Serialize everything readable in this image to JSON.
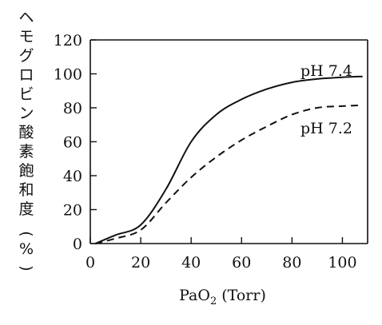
{
  "chart_data": {
    "type": "line",
    "xlabel": "PaO₂ (Torr)",
    "xlabel_main": "PaO",
    "xlabel_sub": "2",
    "xlabel_unit": "(Torr)",
    "ylabel": "ヘモグロビン酸素飽和度 (%)",
    "ylabel_chars": [
      "ヘ",
      "モ",
      "グ",
      "ロ",
      "ビ",
      "ン",
      "酸",
      "素",
      "飽",
      "和",
      "度",
      "(",
      "%",
      ")"
    ],
    "xlim": [
      0,
      110
    ],
    "ylim": [
      0,
      120
    ],
    "x_ticks": [
      0,
      20,
      40,
      60,
      80,
      100
    ],
    "y_ticks": [
      0,
      20,
      40,
      60,
      80,
      100,
      120
    ],
    "x_tick_labels": [
      "0",
      "20",
      "40",
      "60",
      "80",
      "100"
    ],
    "y_tick_labels": [
      "0",
      "20",
      "40",
      "60",
      "80",
      "100",
      "120"
    ],
    "grid": false,
    "series": [
      {
        "name": "pH 7.4",
        "style": "solid",
        "color": "#111111",
        "x": [
          2,
          10,
          20,
          30,
          40,
          50,
          60,
          70,
          80,
          90,
          100,
          108
        ],
        "y": [
          0,
          5,
          11,
          32,
          60,
          76,
          85,
          91,
          95,
          97,
          98,
          98.5
        ]
      },
      {
        "name": "pH 7.2",
        "style": "dashed",
        "color": "#111111",
        "x": [
          2,
          10,
          20,
          30,
          40,
          50,
          60,
          70,
          80,
          90,
          100,
          108
        ],
        "y": [
          0,
          3,
          8,
          24,
          39,
          51,
          61,
          69,
          76,
          80,
          81,
          81.5
        ]
      }
    ]
  }
}
